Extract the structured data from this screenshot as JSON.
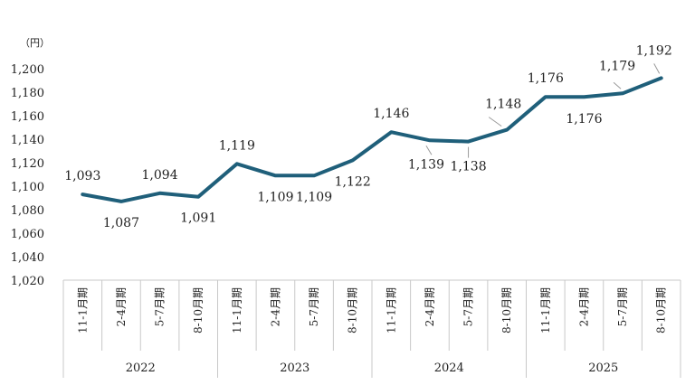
{
  "chart_data": {
    "type": "line",
    "unit_label": "（円）",
    "y_ticks": [
      "1,020",
      "1,040",
      "1,060",
      "1,080",
      "1,100",
      "1,120",
      "1,140",
      "1,160",
      "1,180",
      "1,200"
    ],
    "ylim": [
      1020,
      1200
    ],
    "categories": [
      "11-1月期",
      "2-4月期",
      "5-7月期",
      "8-10月期",
      "11-1月期",
      "2-4月期",
      "5-7月期",
      "8-10月期",
      "11-1月期",
      "2-4月期",
      "5-7月期",
      "8-10月期",
      "11-1月期",
      "2-4月期",
      "5-7月期",
      "8-10月期"
    ],
    "years": [
      "2022",
      "2023",
      "2024",
      "2025"
    ],
    "values": [
      1093,
      1087,
      1094,
      1091,
      1119,
      1109,
      1109,
      1122,
      1146,
      1139,
      1138,
      1148,
      1176,
      1176,
      1179,
      1192
    ],
    "data_labels": [
      "1,093",
      "1,087",
      "1,094",
      "1,091",
      "1,119",
      "1,109",
      "1,109",
      "1,122",
      "1,146",
      "1,139",
      "1,138",
      "1,148",
      "1,176",
      "1,176",
      "1,179",
      "1,192"
    ],
    "series_color": "#1f5f7a",
    "grid": false,
    "legend": "none"
  }
}
